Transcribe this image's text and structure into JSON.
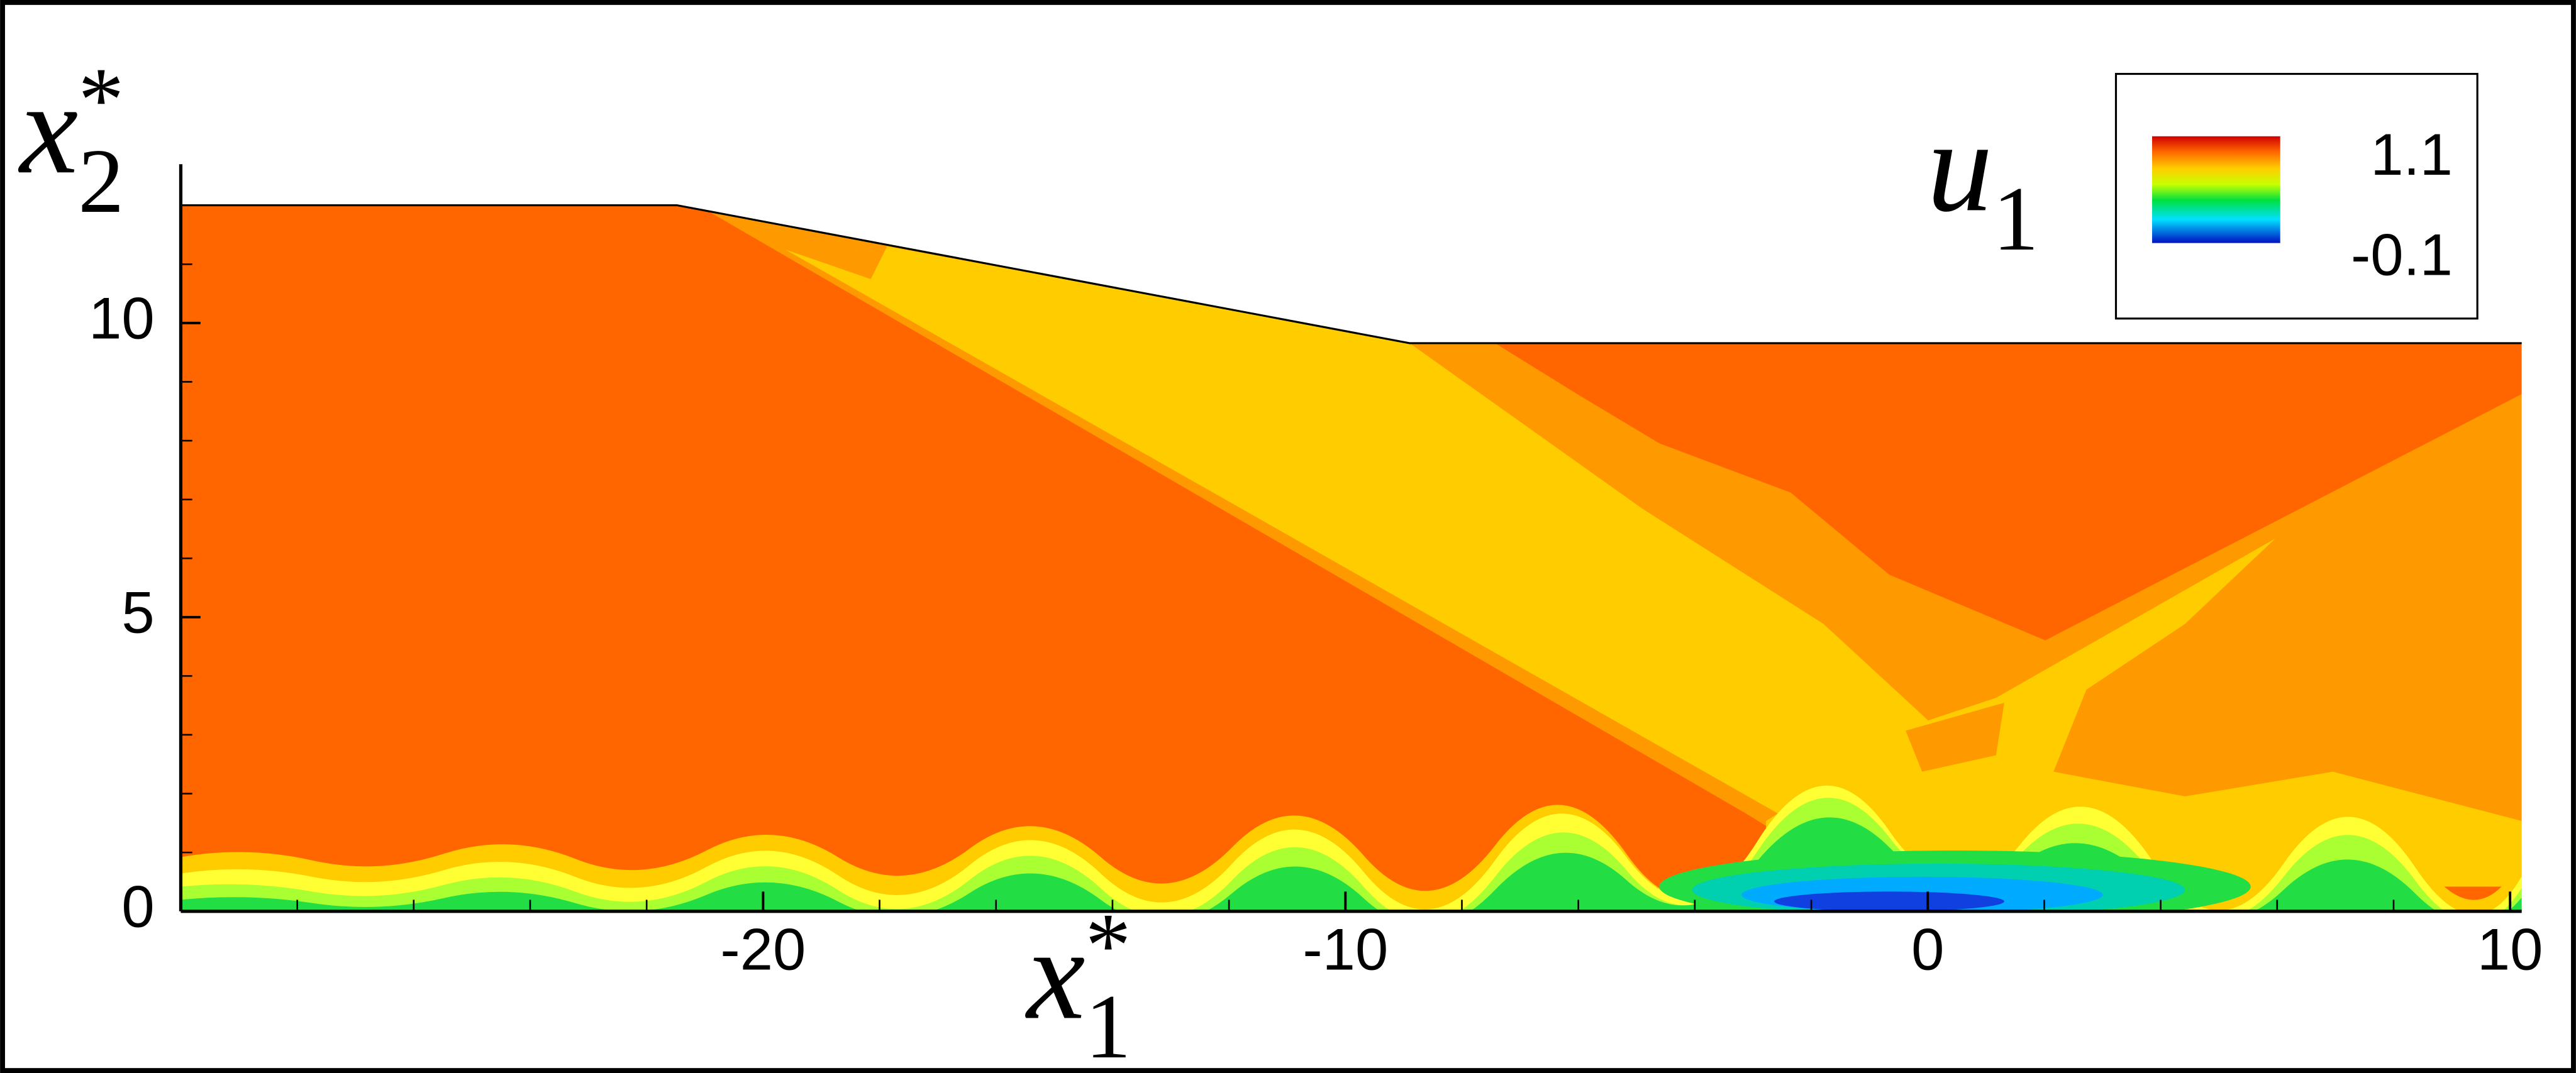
{
  "chart_data": {
    "type": "contour",
    "xlabel": {
      "base": "x",
      "sub": "1",
      "sup": "*"
    },
    "ylabel": {
      "base": "x",
      "sub": "2",
      "sup": "*"
    },
    "colorbar_label": {
      "base": "u",
      "sub": "1"
    },
    "xlim": [
      -30,
      10.2
    ],
    "ylim": [
      0,
      12.7
    ],
    "xticks": [
      -20,
      -10,
      0,
      10
    ],
    "yticks": [
      0,
      5,
      10
    ],
    "xminorticks": [
      -28,
      -26,
      -24,
      -22,
      -18,
      -16,
      -14,
      -12,
      -8,
      -6,
      -4,
      -2,
      2,
      4,
      6,
      8
    ],
    "yminorticks": [
      1,
      2,
      3,
      4,
      6,
      7,
      8,
      9,
      11,
      12
    ],
    "clim": [
      -0.1,
      1.1
    ],
    "cticks": [
      1.1,
      -0.1
    ]
  }
}
